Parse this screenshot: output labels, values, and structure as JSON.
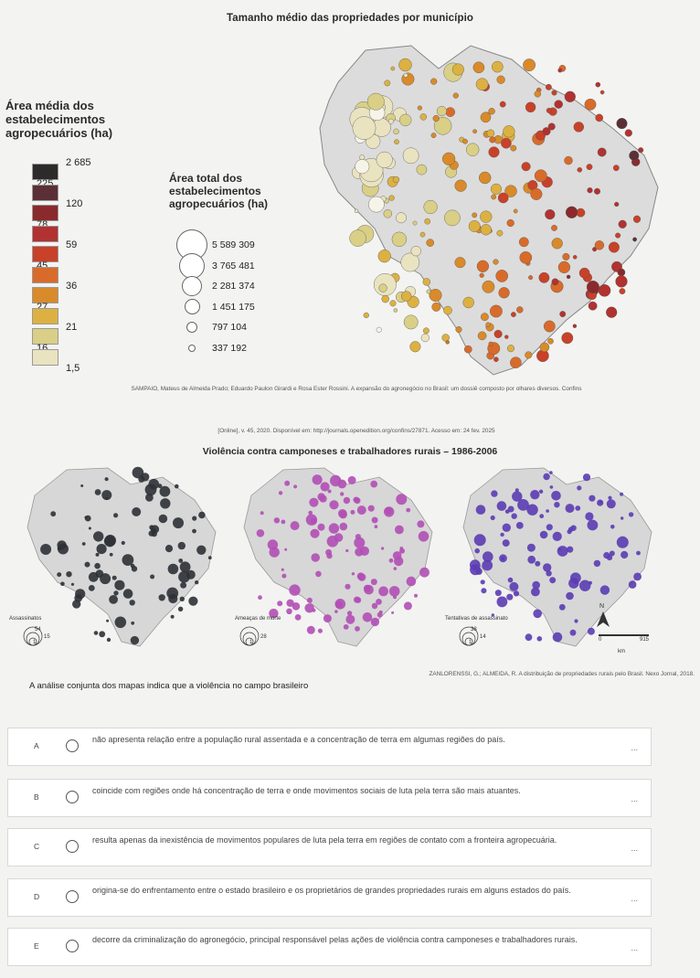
{
  "map1": {
    "title": "Tamanho médio das propriedades por município",
    "legend_title": "Área média dos estabelecimentos agropecuários (ha)",
    "legend_values": [
      "2 685",
      "225",
      "120",
      "78",
      "59",
      "45",
      "36",
      "27",
      "21",
      "16",
      "1,5"
    ],
    "legend_colors": [
      "#2d2a2b",
      "#5a3036",
      "#8a2a2c",
      "#b13230",
      "#c84128",
      "#d96b2a",
      "#d98a2a",
      "#dcb142",
      "#d9cf86",
      "#eae3c0",
      "#f6f3e8"
    ],
    "area_title": "Área total dos estabelecimentos agropecuários (ha)",
    "area_values": [
      "5 589 309",
      "3 765 481",
      "2 281 374",
      "1 451 175",
      "797 104",
      "337 192"
    ]
  },
  "citation1": {
    "line1": "SAMPAIO, Mateus de Almeida Prado; Eduardo Paulon Girardi e Rosa Ester Rossini. A expansão do agronegócio no Brasil: um dossiê composto por olhares diversos. Confins",
    "line2": "[Online], v. 45, 2020. Disponível em: http://journals.openedition.org/confins/27871. Acesso em: 24 fev. 2025"
  },
  "map2": {
    "title": "Violência contra camponeses e trabalhadores rurais – 1986-2006",
    "panels": [
      {
        "label": "Assassinatos",
        "color": "#2e3135",
        "scale_top": "54",
        "scale_mid": "15",
        "scale_low": "1"
      },
      {
        "label": "Ameaças de morte",
        "color": "#b14fb5",
        "scale_top": "",
        "scale_mid": "28",
        "scale_low": "1"
      },
      {
        "label": "Tentativas de assassinato",
        "color": "#5b3cb2",
        "scale_top": "38",
        "scale_mid": "14",
        "scale_low": "1"
      }
    ],
    "north": "N",
    "scale_bar": "915",
    "scale_start": "0",
    "scale_unit": "km"
  },
  "citation2": "ZANLORENSSI, G.; ALMEIDA, R. A distribuição de propriedades rurais pelo Brasil. Nexo Jornal, 2018.",
  "question": "A análise conjunta dos mapas indica que a violência no campo brasileiro",
  "options": [
    {
      "letter": "A",
      "text": "não apresenta relação entre a população rural assentada e a concentração de terra em algumas regiões do país."
    },
    {
      "letter": "B",
      "text": "coincide com regiões onde há concentração de terra e onde movimentos sociais de luta pela terra são mais atuantes."
    },
    {
      "letter": "C",
      "text": "resulta apenas da inexistência de movimentos populares de luta pela terra em regiões de contato com a fronteira agropecuária."
    },
    {
      "letter": "D",
      "text": "origina-se do enfrentamento entre o estado brasileiro e os proprietários de grandes propriedades rurais em alguns estados do país."
    },
    {
      "letter": "E",
      "text": "decorre da criminalização do agronegócio, principal responsável pelas ações de violência contra camponeses e trabalhadores rurais."
    }
  ],
  "more_glyph": "..."
}
